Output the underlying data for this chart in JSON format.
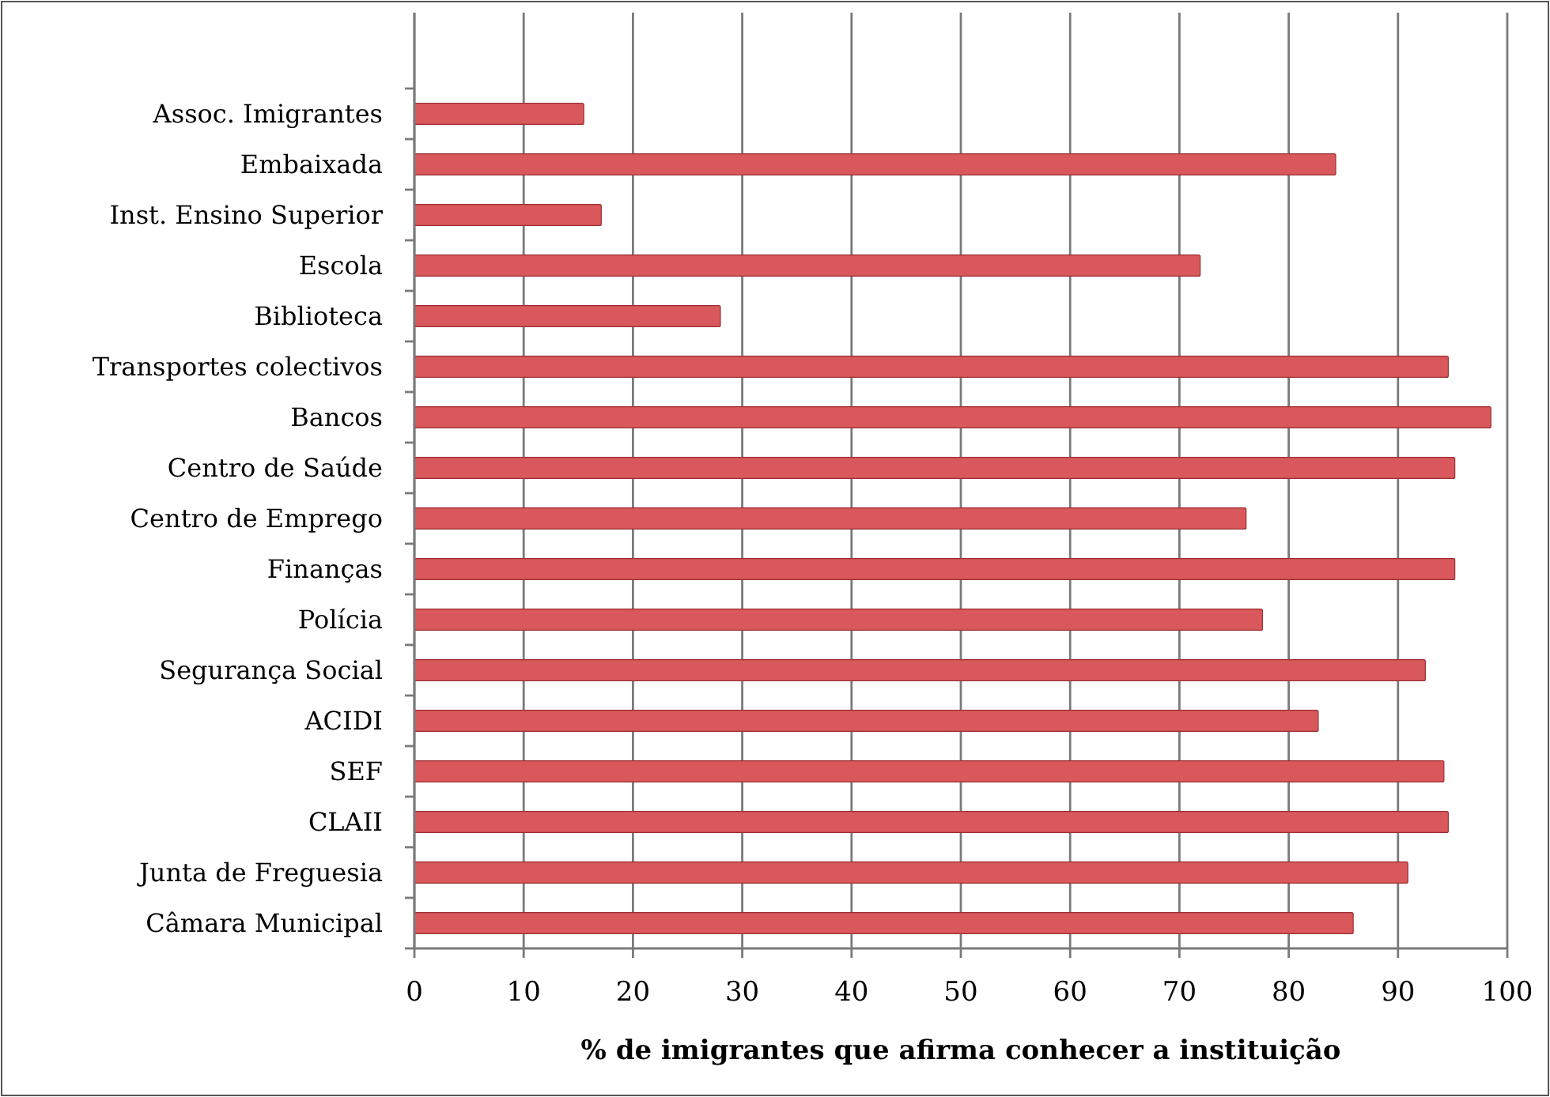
{
  "chart_data": {
    "type": "bar",
    "orientation": "horizontal",
    "xlabel": "% de imigrantes que afirma conhecer a instituição",
    "categories": [
      "Assoc. Imigrantes",
      "Embaixada",
      "Inst. Ensino Superior",
      "Escola",
      "Biblioteca",
      "Transportes colectivos",
      "Bancos",
      "Centro de Saúde",
      "Centro de Emprego",
      "Finanças",
      "Polícia",
      "Segurança Social",
      "ACIDI",
      "SEF",
      "CLAII",
      "Junta de Freguesia",
      "Câmara Municipal"
    ],
    "values": [
      15.5,
      84.3,
      17.1,
      71.9,
      28.0,
      94.6,
      98.5,
      95.2,
      76.1,
      95.2,
      77.6,
      92.5,
      82.7,
      94.2,
      94.6,
      90.9,
      85.9
    ],
    "color": "#d9585c",
    "xlim": [
      0,
      100
    ],
    "xticks": [
      0,
      10,
      20,
      30,
      40,
      50,
      60,
      70,
      80,
      90,
      100
    ],
    "grid": "x"
  }
}
